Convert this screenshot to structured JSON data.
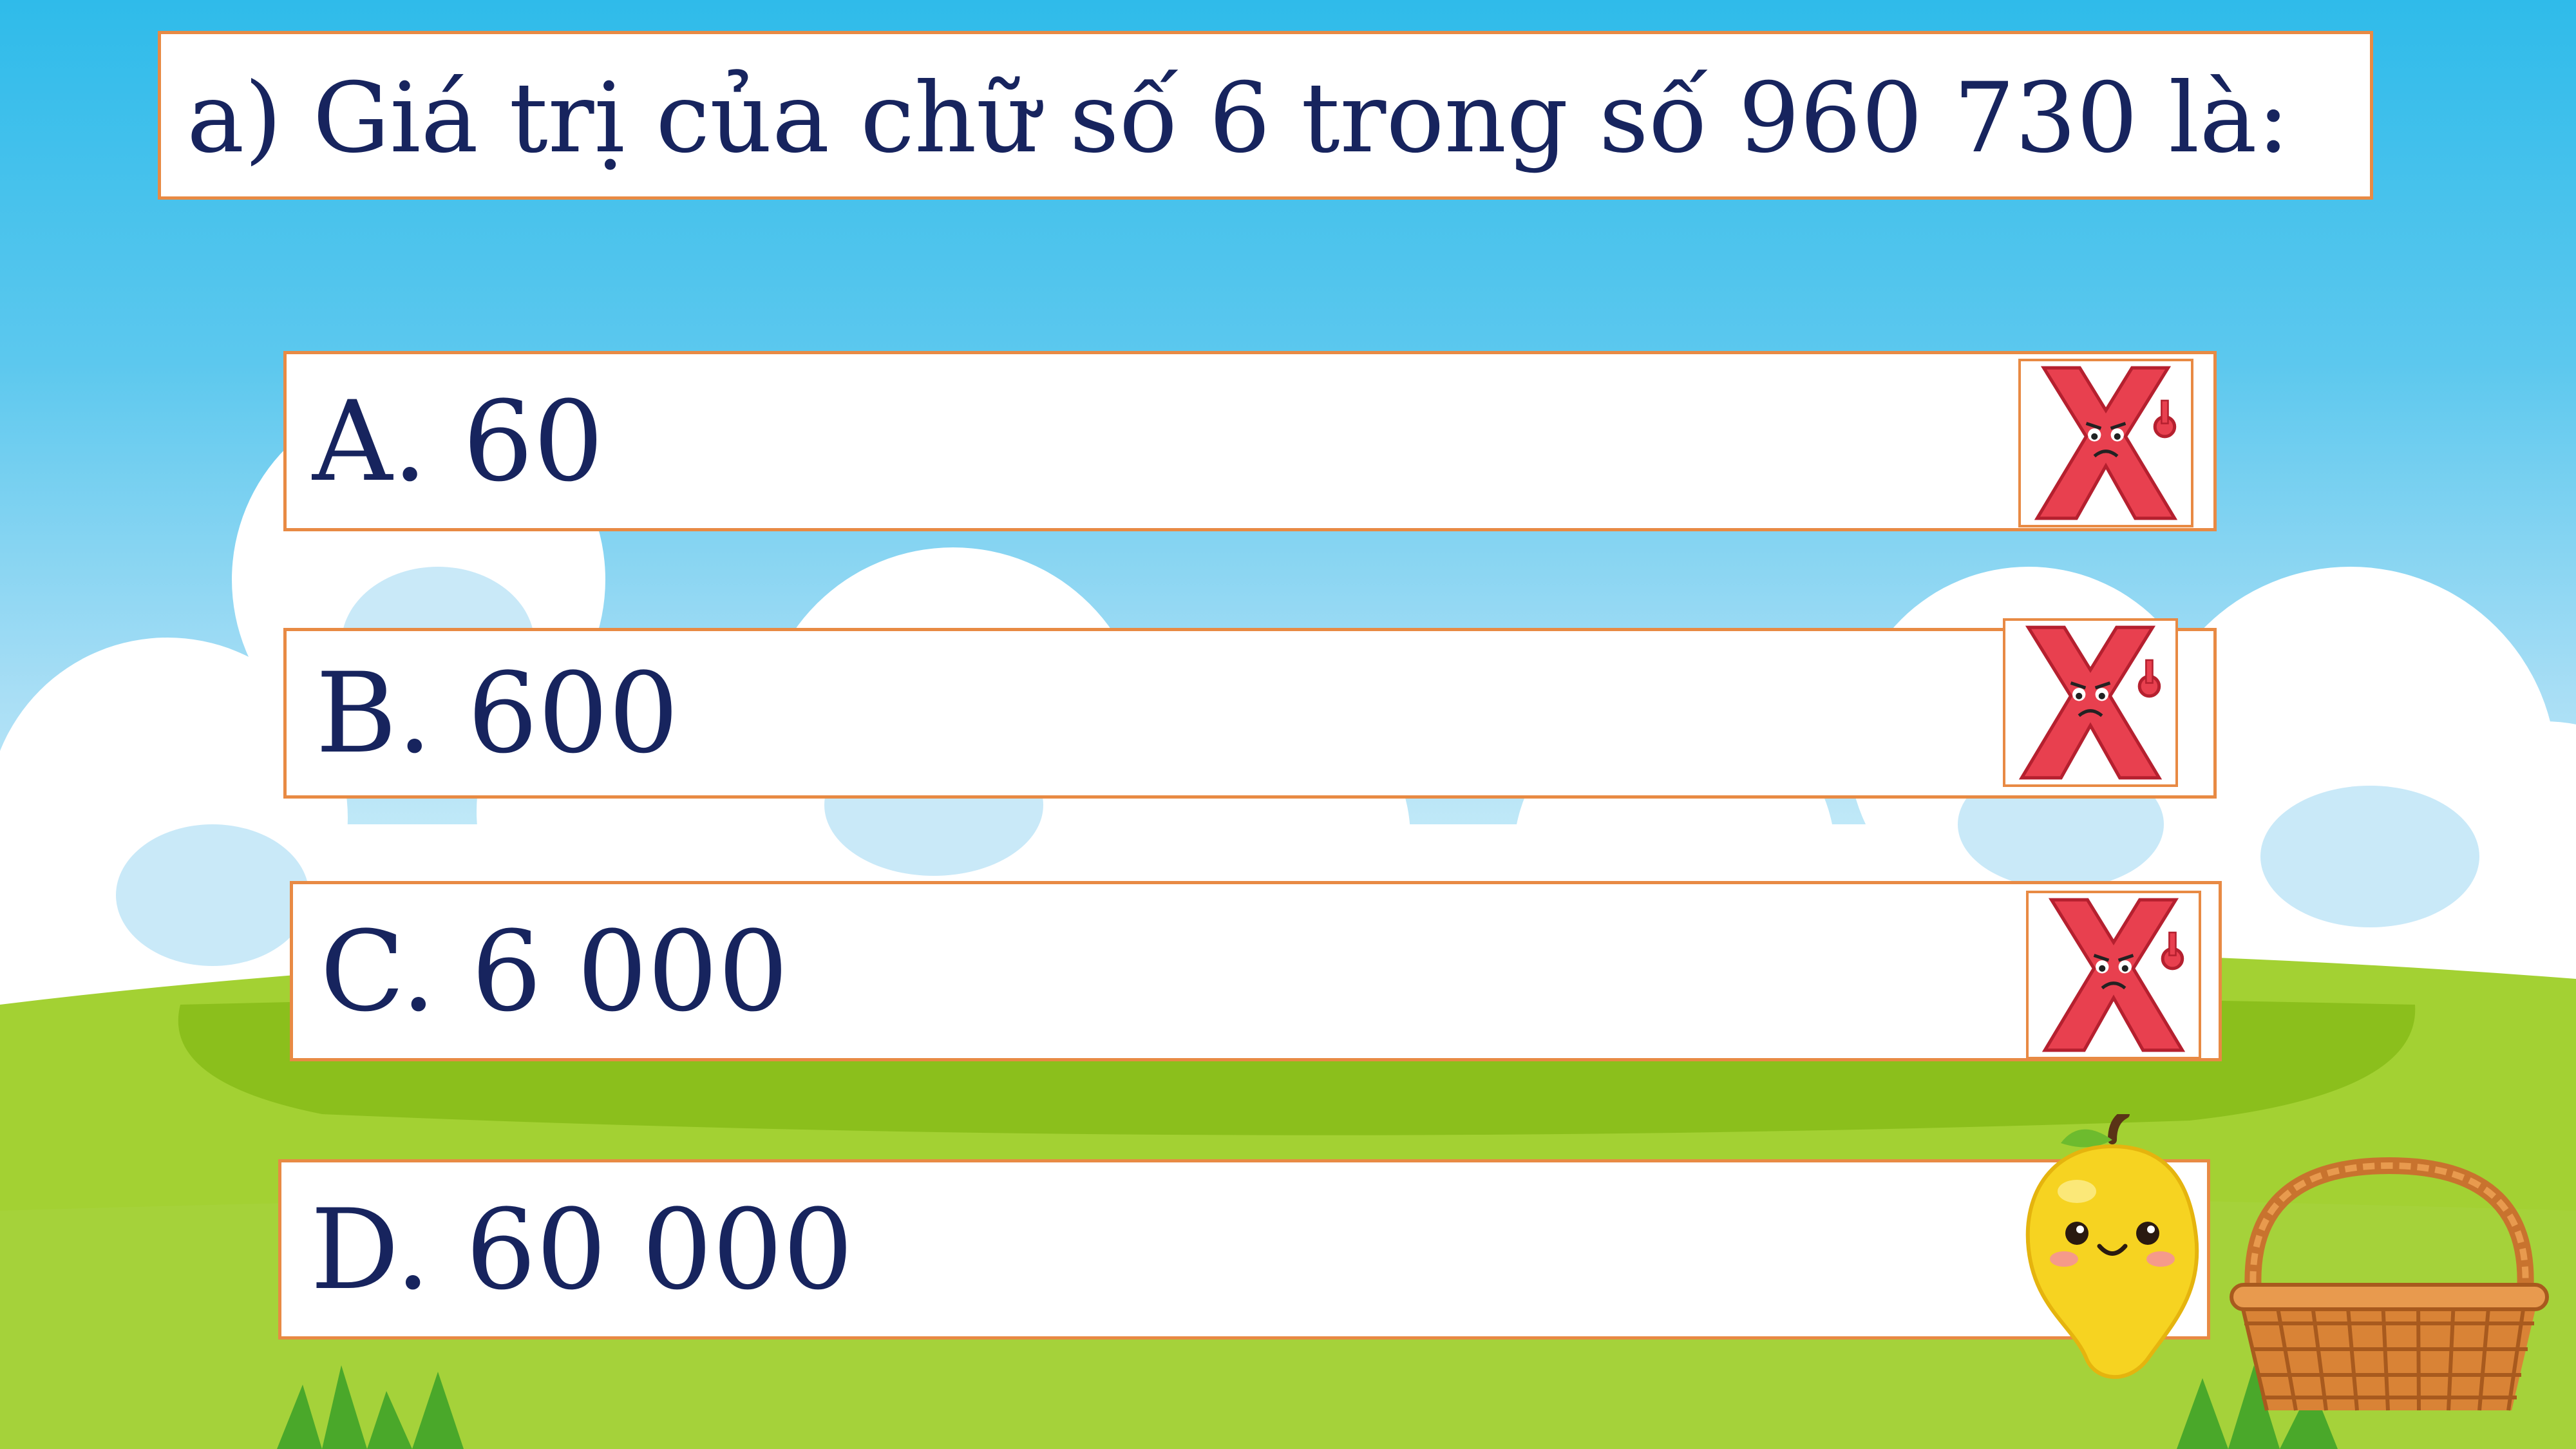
{
  "question": {
    "text": "a) Giá trị của chữ số 6 trong số 960 730 là:"
  },
  "options": [
    {
      "label": "A. 60",
      "marked_wrong": true
    },
    {
      "label": "B. 600",
      "marked_wrong": true
    },
    {
      "label": "C. 6 000",
      "marked_wrong": true
    },
    {
      "label": "D. 60 000",
      "marked_wrong": false
    }
  ],
  "decorations": {
    "wrong_mark_icon": "angry-red-x-icon",
    "mango_icon": "smiling-mango-icon",
    "basket_icon": "wicker-basket-icon",
    "colors": {
      "sky": "#2fbbea",
      "grass": "#9acd32",
      "box_border": "#e88a44",
      "text": "#17245e",
      "wrong_mark": "#e8404f"
    }
  }
}
